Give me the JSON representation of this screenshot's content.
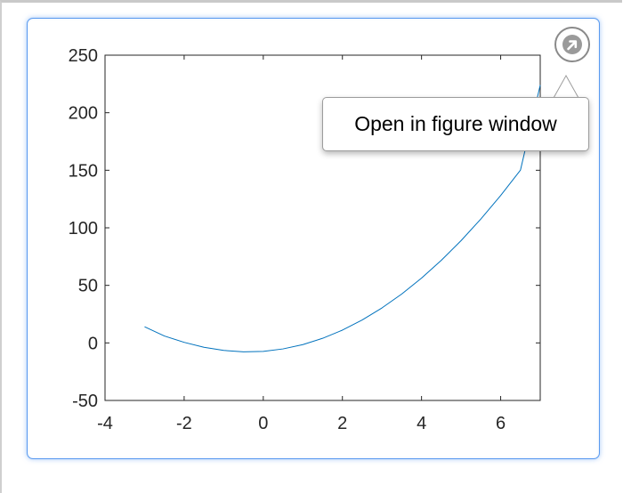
{
  "tooltip": {
    "text": "Open in figure window"
  },
  "open_figure_button": {
    "icon": "arrow-up-right-icon"
  },
  "colors": {
    "line": "#0072BD",
    "axes": "#262626",
    "card_border": "#5b9bf0"
  },
  "chart_data": {
    "type": "line",
    "title": "",
    "xlabel": "",
    "ylabel": "",
    "xlim": [
      -4,
      7
    ],
    "ylim": [
      -50,
      250
    ],
    "xticks": [
      -4,
      -2,
      0,
      2,
      4,
      6
    ],
    "yticks": [
      -50,
      0,
      50,
      100,
      150,
      200,
      250
    ],
    "xtick_labels": [
      "-4",
      "-2",
      "0",
      "2",
      "4",
      "6"
    ],
    "ytick_labels": [
      "-50",
      "0",
      "50",
      "100",
      "150",
      "200",
      "250"
    ],
    "grid": false,
    "series": [
      {
        "x": [
          -3,
          -2.5,
          -2,
          -1.5,
          -1,
          -0.5,
          0,
          0.5,
          1,
          1.5,
          2,
          2.5,
          3,
          3.5,
          4,
          4.5,
          5,
          5.5,
          6,
          6.5,
          7
        ],
        "y": [
          14,
          6,
          0.5,
          -3.8,
          -6.5,
          -7.8,
          -7.4,
          -5.2,
          -1.5,
          4,
          11.1,
          19.9,
          30.4,
          42.5,
          56.3,
          71.8,
          88.9,
          107.7,
          128.1,
          150.1,
          224
        ]
      }
    ]
  }
}
